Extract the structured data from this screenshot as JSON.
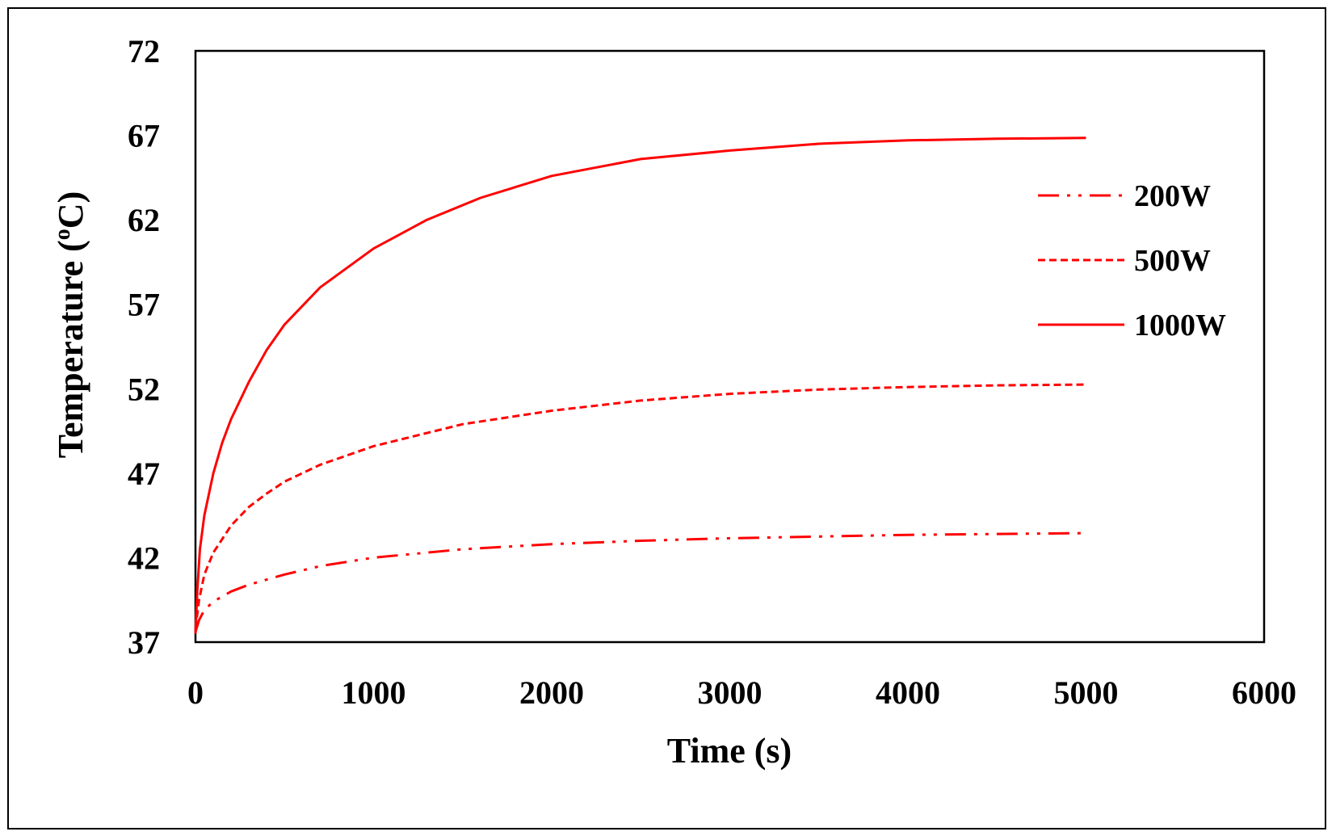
{
  "chart_data": {
    "type": "line",
    "title": "",
    "xlabel": "Time (s)",
    "ylabel_main": "Temperature (",
    "ylabel_sup": "o",
    "ylabel_end": "C)",
    "xlim": [
      0,
      6000
    ],
    "ylim": [
      37,
      72
    ],
    "xticks": [
      "0",
      "1000",
      "2000",
      "3000",
      "4000",
      "5000",
      "6000"
    ],
    "yticks": [
      "37",
      "42",
      "47",
      "52",
      "57",
      "62",
      "67",
      "72"
    ],
    "grid": false,
    "legend_position": "right",
    "line_color": "#ff0000",
    "series": [
      {
        "name": "200W",
        "style": "dash-dot-dot",
        "x": [
          0,
          20,
          50,
          100,
          200,
          300,
          500,
          700,
          1000,
          1500,
          2000,
          2500,
          3000,
          3500,
          4000,
          4500,
          5000
        ],
        "y": [
          37.6,
          38.3,
          38.9,
          39.4,
          40.0,
          40.4,
          41.0,
          41.5,
          42.0,
          42.5,
          42.8,
          43.0,
          43.15,
          43.25,
          43.35,
          43.4,
          43.45
        ]
      },
      {
        "name": "500W",
        "style": "dashed",
        "x": [
          0,
          20,
          50,
          100,
          200,
          300,
          400,
          500,
          700,
          1000,
          1500,
          2000,
          2500,
          3000,
          3500,
          4000,
          4500,
          5000
        ],
        "y": [
          37.8,
          39.5,
          41.0,
          42.3,
          43.9,
          45.0,
          45.8,
          46.5,
          47.5,
          48.6,
          49.9,
          50.7,
          51.3,
          51.7,
          51.95,
          52.1,
          52.2,
          52.25
        ]
      },
      {
        "name": "1000W",
        "style": "solid",
        "x": [
          0,
          10,
          25,
          50,
          100,
          150,
          200,
          300,
          400,
          500,
          700,
          1000,
          1300,
          1600,
          2000,
          2500,
          3000,
          3500,
          4000,
          4500,
          5000
        ],
        "y": [
          37.5,
          40.0,
          42.5,
          44.5,
          47.0,
          48.8,
          50.2,
          52.4,
          54.3,
          55.8,
          58.0,
          60.3,
          62.0,
          63.3,
          64.6,
          65.6,
          66.1,
          66.5,
          66.7,
          66.8,
          66.85
        ]
      }
    ]
  }
}
